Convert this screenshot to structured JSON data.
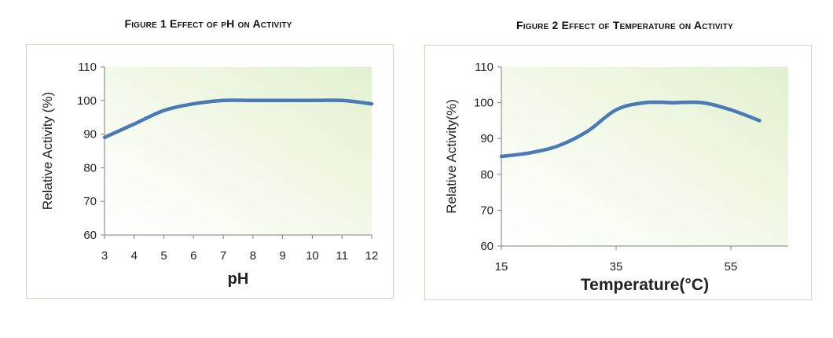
{
  "chart_data": [
    {
      "type": "line",
      "title": "Figure 1 Effect of pH on Activity",
      "xlabel": "pH",
      "ylabel": "Relative Activity (%)",
      "xlim": [
        3,
        12
      ],
      "ylim": [
        60,
        110
      ],
      "xticks": [
        3,
        4,
        5,
        6,
        7,
        8,
        9,
        10,
        11,
        12
      ],
      "yticks": [
        60,
        70,
        80,
        90,
        100,
        110
      ],
      "series": [
        {
          "name": "Relative Activity",
          "x": [
            3,
            4,
            5,
            6,
            7,
            8,
            9,
            10,
            11,
            12
          ],
          "y": [
            89,
            93,
            97,
            99,
            100,
            100,
            100,
            100,
            100,
            99
          ]
        }
      ],
      "line_color": "#4a7ab6"
    },
    {
      "type": "line",
      "title": "Figure 2 Effect of Temperature on Activity",
      "xlabel": "Temperature(°C)",
      "ylabel": "Relative Activity(%)",
      "xlim": [
        15,
        65
      ],
      "ylim": [
        60,
        110
      ],
      "xticks": [
        15,
        35,
        55
      ],
      "yticks": [
        60,
        70,
        80,
        90,
        100,
        110
      ],
      "series": [
        {
          "name": "Relative Activity",
          "x": [
            15,
            20,
            25,
            30,
            35,
            40,
            45,
            50,
            55,
            60
          ],
          "y": [
            85,
            86,
            88,
            92,
            98,
            100,
            100,
            100,
            98,
            95
          ]
        }
      ],
      "line_color": "#4a7ab6"
    }
  ]
}
